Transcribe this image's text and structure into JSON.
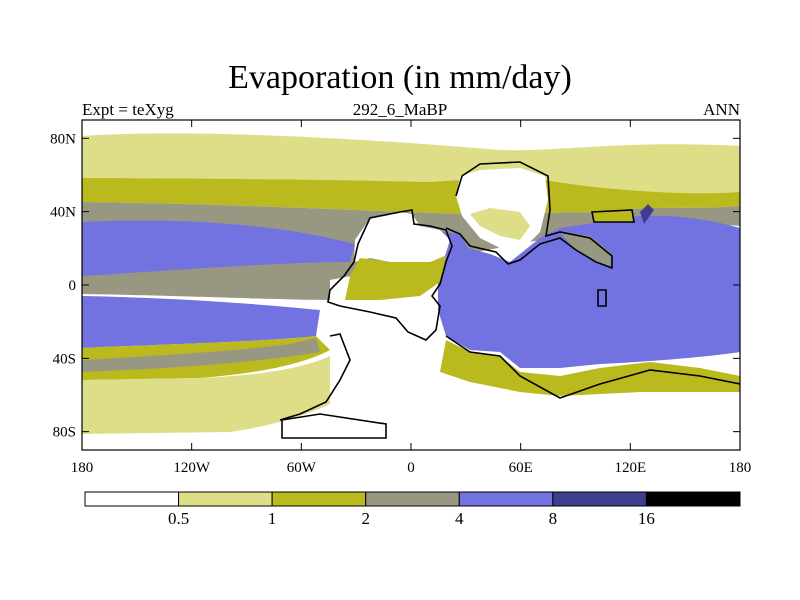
{
  "title": "Evaporation (in mm/day)",
  "left_label": "Expt = teXyg",
  "center_label": "292_6_MaBP",
  "right_label": "ANN",
  "colors": {
    "lt_0_5": "#ffffff",
    "c_0_5_1": "#dede88",
    "c_1_2": "#baba1e",
    "c_2_4": "#989882",
    "c_4_8": "#7272e0",
    "c_8_16": "#3e3e8c",
    "gt_16": "#000000",
    "coast": "#000000"
  },
  "map": {
    "lon_ticks": [
      {
        "value": -180,
        "label": "180"
      },
      {
        "value": -120,
        "label": "120W"
      },
      {
        "value": -60,
        "label": "60W"
      },
      {
        "value": 0,
        "label": "0"
      },
      {
        "value": 60,
        "label": "60E"
      },
      {
        "value": 120,
        "label": "120E"
      },
      {
        "value": 180,
        "label": "180"
      }
    ],
    "lat_ticks": [
      {
        "value": 80,
        "label": "80N"
      },
      {
        "value": 40,
        "label": "40N"
      },
      {
        "value": 0,
        "label": "0"
      },
      {
        "value": -40,
        "label": "40S"
      },
      {
        "value": -80,
        "label": "80S"
      }
    ]
  },
  "colorbar": {
    "labels": [
      "0.5",
      "1",
      "2",
      "4",
      "8",
      "16"
    ]
  }
}
